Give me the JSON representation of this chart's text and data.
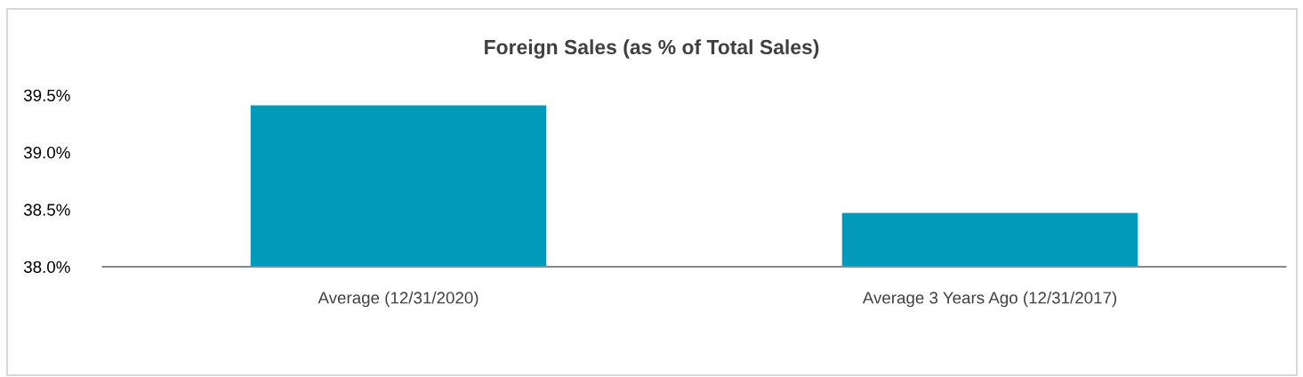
{
  "chart_data": {
    "type": "bar",
    "title": "Foreign Sales (as % of Total Sales)",
    "categories": [
      "Average (12/31/2020)",
      "Average 3 Years Ago (12/31/2017)"
    ],
    "series": [
      {
        "color": "#019abb",
        "values": [
          39.41,
          38.47
        ]
      }
    ],
    "ylim": [
      38.0,
      39.5
    ],
    "yticks": [
      {
        "value": 38.0,
        "label": "38.0%"
      },
      {
        "value": 38.5,
        "label": "38.5%"
      },
      {
        "value": 39.0,
        "label": "39.0%"
      },
      {
        "value": 39.5,
        "label": "39.5%"
      }
    ]
  }
}
